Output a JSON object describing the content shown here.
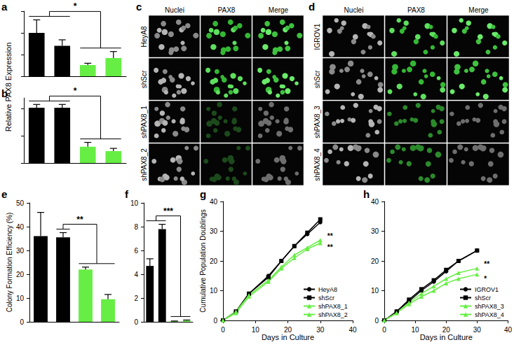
{
  "chart_data": [
    {
      "panel_label": "a",
      "type": "bar",
      "ylabel": "Relative PAX8 Expression",
      "categories": [
        null,
        null,
        null,
        null
      ],
      "values": [
        1.0,
        0.7,
        0.26,
        0.42
      ],
      "errors": [
        0.3,
        0.14,
        0.04,
        0.15
      ],
      "colors": [
        "#000000",
        "#000000",
        "#66ee44",
        "#66ee44"
      ],
      "ylim": [
        0,
        1.5
      ],
      "yticks": [
        0,
        0.5,
        1,
        1.5
      ],
      "tick_labels": false,
      "grid": false,
      "annotations": [
        {
          "text": "*",
          "groups": [
            [
              0,
              1
            ],
            [
              2,
              3
            ]
          ]
        }
      ]
    },
    {
      "panel_label": "b",
      "type": "bar",
      "categories": [
        null,
        null,
        null,
        null
      ],
      "values": [
        1.02,
        1.02,
        0.3,
        0.22
      ],
      "errors": [
        0.06,
        0.06,
        0.08,
        0.05
      ],
      "colors": [
        "#000000",
        "#000000",
        "#66ee44",
        "#66ee44"
      ],
      "ylim": [
        0,
        1.2
      ],
      "yticks": [
        0,
        0.5,
        1
      ],
      "tick_labels": false,
      "grid": false,
      "annotations": [
        {
          "text": "*",
          "groups": [
            [
              0,
              1
            ],
            [
              2,
              3
            ]
          ]
        }
      ]
    },
    {
      "panel_label": "e",
      "type": "bar",
      "ylabel": "Colony Formation Efficiency (%)",
      "categories": [
        null,
        null,
        null,
        null
      ],
      "values": [
        36,
        35.5,
        22,
        9.5
      ],
      "errors": [
        10,
        2,
        1,
        2
      ],
      "colors": [
        "#000000",
        "#000000",
        "#66ee44",
        "#66ee44"
      ],
      "ylim": [
        0,
        50
      ],
      "yticks": [
        0,
        10,
        20,
        30,
        40,
        50
      ],
      "tick_labels": "y",
      "grid": false,
      "annotations": [
        {
          "text": "**",
          "groups": [
            [
              1
            ],
            [
              2,
              3
            ]
          ]
        }
      ]
    },
    {
      "panel_label": "f",
      "type": "bar",
      "categories": [
        null,
        null,
        null,
        null
      ],
      "values": [
        4.7,
        7.8,
        0.05,
        0.1
      ],
      "errors": [
        0.6,
        0.4,
        0.02,
        0.05
      ],
      "colors": [
        "#000000",
        "#000000",
        "#66ee44",
        "#66ee44"
      ],
      "ylim": [
        0,
        10
      ],
      "yticks": [
        0,
        2,
        4,
        6,
        8,
        10
      ],
      "tick_labels": "y",
      "grid": false,
      "annotations": [
        {
          "text": "***",
          "groups": [
            [
              0,
              1
            ],
            [
              2,
              3
            ]
          ]
        }
      ]
    },
    {
      "panel_label": "g",
      "type": "line",
      "ylabel": "Cumulative Population Doublings",
      "xlabel": "Days in Culture",
      "x": [
        0,
        4,
        8,
        14,
        18,
        22,
        26,
        30
      ],
      "series": [
        {
          "name": "HeyA8",
          "color": "#000000",
          "marker": "circle",
          "values": [
            0,
            3,
            9,
            15,
            20,
            25,
            29,
            33
          ]
        },
        {
          "name": "shScr",
          "color": "#000000",
          "marker": "square",
          "values": [
            0,
            3,
            9,
            14.5,
            20,
            25,
            29.5,
            34
          ]
        },
        {
          "name": "shPAX8_1",
          "color": "#66ee44",
          "marker": "triangle",
          "values": [
            0,
            3,
            8.5,
            13.5,
            18,
            22,
            24.5,
            27
          ],
          "annotation": "**"
        },
        {
          "name": "shPAX8_2",
          "color": "#66ee44",
          "marker": "triangle",
          "values": [
            0,
            2.5,
            8,
            13,
            17.5,
            21,
            24,
            26
          ],
          "annotation": "**"
        }
      ],
      "xlim": [
        0,
        40
      ],
      "xticks": [
        0,
        10,
        20,
        30,
        40
      ],
      "ylim": [
        0,
        40
      ],
      "yticks": [
        0,
        10,
        20,
        30,
        40
      ],
      "legend": "lower right",
      "grid": false
    },
    {
      "panel_label": "h",
      "type": "line",
      "xlabel": "Days in Culture",
      "x": [
        0,
        4,
        8,
        12,
        16,
        20,
        24,
        30
      ],
      "series": [
        {
          "name": "IGROV1",
          "color": "#000000",
          "marker": "circle",
          "values": [
            0,
            3,
            6.5,
            10,
            13,
            16.5,
            20,
            23.5
          ]
        },
        {
          "name": "shScr",
          "color": "#000000",
          "marker": "square",
          "values": [
            0,
            3,
            7,
            10.5,
            13.5,
            17,
            20,
            23.5
          ]
        },
        {
          "name": "shPAX8_3",
          "color": "#66ee44",
          "marker": "triangle",
          "values": [
            0,
            2.5,
            6,
            9,
            11.5,
            14,
            16,
            17.5
          ],
          "annotation": "**"
        },
        {
          "name": "shPAX8_4",
          "color": "#66ee44",
          "marker": "triangle",
          "values": [
            0,
            2.5,
            5.5,
            8,
            10,
            12.5,
            14,
            15.5
          ],
          "annotation": "*"
        }
      ],
      "xlim": [
        0,
        40
      ],
      "xticks": [
        0,
        10,
        20,
        30,
        40
      ],
      "ylim": [
        0,
        40
      ],
      "yticks": [
        0,
        10,
        20,
        30,
        40
      ],
      "legend": "lower right",
      "grid": false
    }
  ],
  "image_panels": [
    {
      "panel_label": "c",
      "columns": [
        "Nuclei",
        "PAX8",
        "Merge"
      ],
      "rows": [
        "HeyA8",
        "shScr",
        "shPAX8_1",
        "shPAX8_2"
      ]
    },
    {
      "panel_label": "d",
      "columns": [
        "Nuclei",
        "PAX8",
        "Merge"
      ],
      "rows": [
        "IGROV1",
        "shScr",
        "shPAX8_3",
        "shPAX8_4"
      ]
    }
  ]
}
